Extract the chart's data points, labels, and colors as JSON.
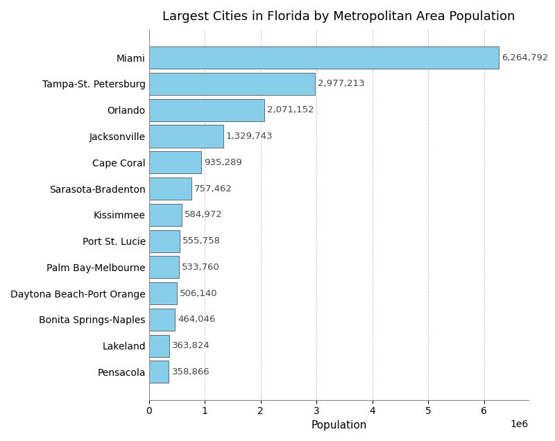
{
  "title": "Largest Cities in Florida by Metropolitan Area Population",
  "xlabel": "Population",
  "cities": [
    "Miami",
    "Tampa-St. Petersburg",
    "Orlando",
    "Jacksonville",
    "Cape Coral",
    "Sarasota-Bradenton",
    "Kissimmee",
    "Port St. Lucie",
    "Palm Bay-Melbourne",
    "Daytona Beach-Port Orange",
    "Bonita Springs-Naples",
    "Lakeland",
    "Pensacola"
  ],
  "populations": [
    6264792,
    2977213,
    2071152,
    1329743,
    935289,
    757462,
    584972,
    555758,
    533760,
    506140,
    464046,
    363824,
    358866
  ],
  "bar_color": "#87CEEB",
  "bar_edge_color": "#555555",
  "background_color": "#ffffff",
  "grid_color": "#cccccc",
  "title_fontsize": 13,
  "label_fontsize": 11,
  "tick_fontsize": 10,
  "annotation_fontsize": 9.5,
  "xlim": [
    0,
    6800000
  ]
}
